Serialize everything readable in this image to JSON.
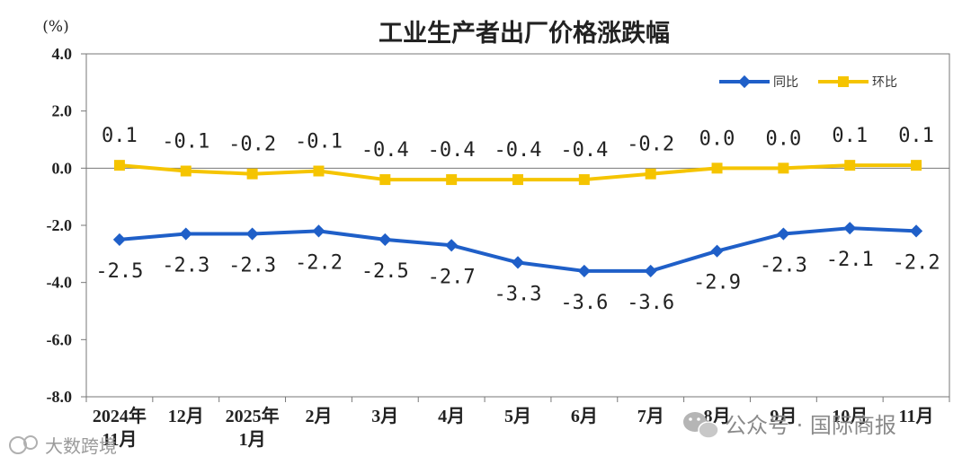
{
  "chart_data": {
    "type": "line",
    "title": "工业生产者出厂价格涨跌幅",
    "unit_label": "(%)",
    "categories": [
      [
        "2024年",
        "11月"
      ],
      [
        "12月"
      ],
      [
        "2025年",
        "1月"
      ],
      [
        "2月"
      ],
      [
        "3月"
      ],
      [
        "4月"
      ],
      [
        "5月"
      ],
      [
        "6月"
      ],
      [
        "7月"
      ],
      [
        "8月"
      ],
      [
        "9月"
      ],
      [
        "10月"
      ],
      [
        "11月"
      ]
    ],
    "ylim": [
      -8.0,
      4.0
    ],
    "yticks": [
      {
        "value": 4.0,
        "label": "4.0"
      },
      {
        "value": 2.0,
        "label": "2.0"
      },
      {
        "value": 0.0,
        "label": "0.0"
      },
      {
        "value": -2.0,
        "label": "-2.0"
      },
      {
        "value": -4.0,
        "label": "-4.0"
      },
      {
        "value": -6.0,
        "label": "-6.0"
      },
      {
        "value": -8.0,
        "label": "-8.0"
      }
    ],
    "grid": false,
    "legend_position": "top-right",
    "series": [
      {
        "name": "同比",
        "color": "#1f5fc8",
        "marker": "diamond",
        "values": [
          -2.5,
          -2.3,
          -2.3,
          -2.2,
          -2.5,
          -2.7,
          -3.3,
          -3.6,
          -3.6,
          -2.9,
          -2.3,
          -2.1,
          -2.2
        ],
        "labels": [
          "-2.5",
          "-2.3",
          "-2.3",
          "-2.2",
          "-2.5",
          "-2.7",
          "-3.3",
          "-3.6",
          "-3.6",
          "-2.9",
          "-2.3",
          "-2.1",
          "-2.2"
        ]
      },
      {
        "name": "环比",
        "color": "#f5c400",
        "marker": "square",
        "values": [
          0.1,
          -0.1,
          -0.2,
          -0.1,
          -0.4,
          -0.4,
          -0.4,
          -0.4,
          -0.2,
          0.0,
          0.0,
          0.1,
          0.1
        ],
        "labels": [
          "0.1",
          "-0.1",
          "-0.2",
          "-0.1",
          "-0.4",
          "-0.4",
          "-0.4",
          "-0.4",
          "-0.2",
          "0.0",
          "0.0",
          "0.1",
          "0.1"
        ]
      }
    ]
  },
  "watermarks": {
    "left": "大数跨境",
    "right": "公众号 · 国际商报"
  }
}
